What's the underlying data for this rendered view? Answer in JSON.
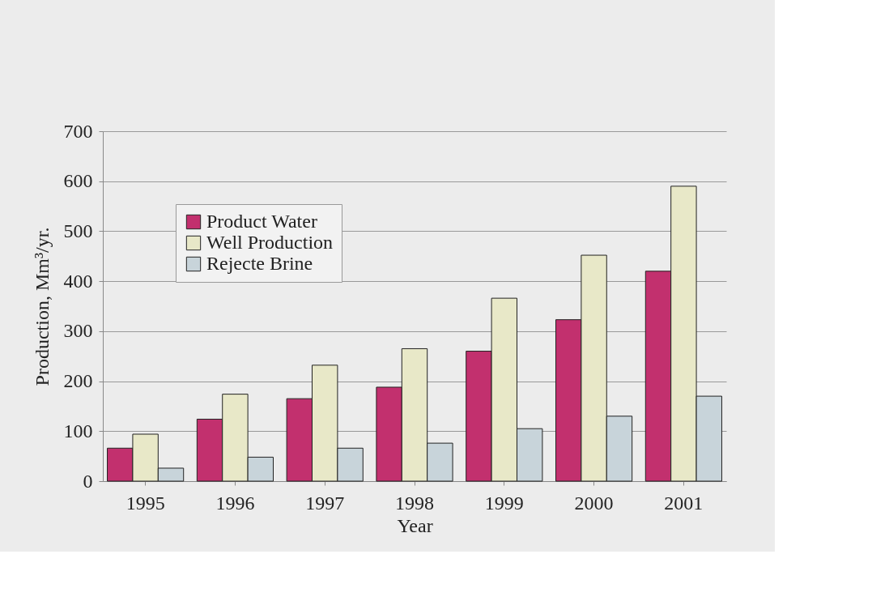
{
  "chart_data": {
    "type": "bar",
    "xlabel": "Year",
    "ylabel": "Production, Mm³/yr.",
    "categories": [
      "1995",
      "1996",
      "1997",
      "1998",
      "1999",
      "2000",
      "2001"
    ],
    "series": [
      {
        "name": "Product Water",
        "color": "#c2306e",
        "values": [
          66,
          124,
          165,
          188,
          260,
          323,
          420
        ]
      },
      {
        "name": "Well Production",
        "color": "#e8e8c8",
        "values": [
          94,
          174,
          232,
          265,
          366,
          452,
          590
        ]
      },
      {
        "name": "Rejecte Brine",
        "color": "#c8d4da",
        "values": [
          26,
          48,
          66,
          76,
          105,
          130,
          170
        ]
      }
    ],
    "ylim": [
      0,
      700
    ],
    "yticks": [
      0,
      100,
      200,
      300,
      400,
      500,
      600,
      700
    ],
    "grid": "y",
    "legend": "top left"
  }
}
